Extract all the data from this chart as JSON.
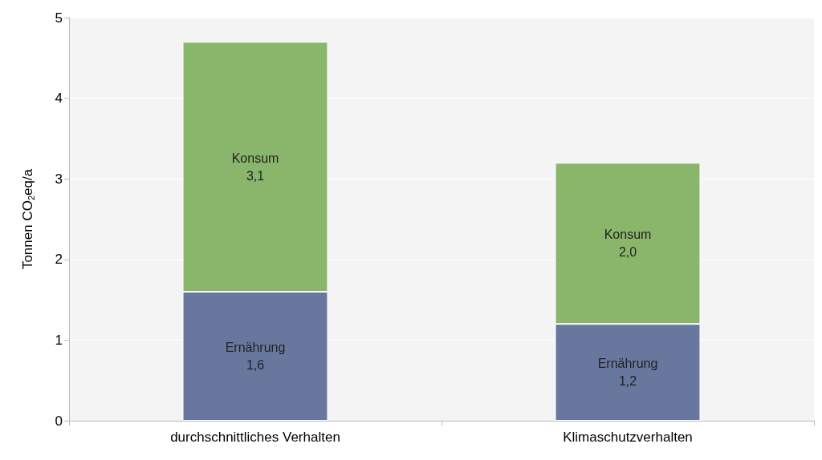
{
  "chart_data": {
    "type": "bar",
    "stacked": true,
    "ylabel": "Tonnen CO$_{2}$eq/a",
    "categories": [
      "durchschnittliches Verhalten",
      "Klimaschutzverhalten"
    ],
    "series": [
      {
        "name": "Ernährung",
        "color": "#67779e",
        "values": [
          1.6,
          1.2
        ],
        "value_labels": [
          "1,6",
          "1,2"
        ]
      },
      {
        "name": "Konsum",
        "color": "#8ab66b",
        "values": [
          3.1,
          2.0
        ],
        "value_labels": [
          "3,1",
          "2,0"
        ]
      }
    ],
    "ylim": [
      0,
      5
    ],
    "yticks": [
      0,
      1,
      2,
      3,
      4,
      5
    ],
    "grid": "y",
    "legend": false
  }
}
